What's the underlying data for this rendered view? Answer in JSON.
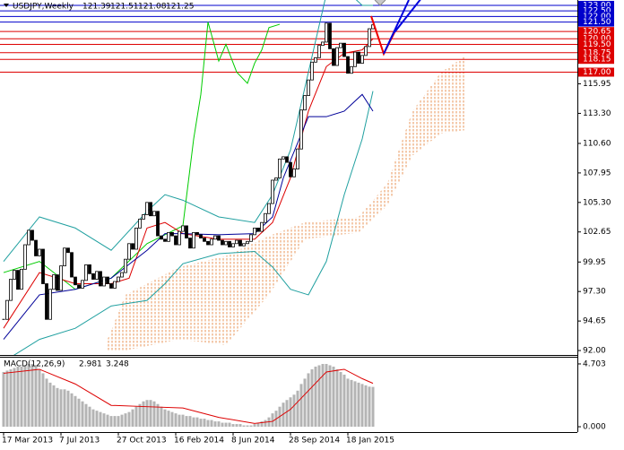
{
  "chart_data": {
    "type": "candlestick",
    "symbol": "USDJPY,Weekly",
    "ohlc_header": [
      121.39,
      121.51,
      121.08,
      121.25
    ],
    "close": [
      94.8,
      96.5,
      98.4,
      99.2,
      97.5,
      99.3,
      101.5,
      102.8,
      101.9,
      100.5,
      101.1,
      98.0,
      94.8,
      97.5,
      98.8,
      97.4,
      99.6,
      101.2,
      100.8,
      98.6,
      97.9,
      97.6,
      98.3,
      99.7,
      98.9,
      98.4,
      99.1,
      97.8,
      98.6,
      98.0,
      97.6,
      98.2,
      98.6,
      99.0,
      100.2,
      101.6,
      101.1,
      103.0,
      103.8,
      104.2,
      105.3,
      104.1,
      104.5,
      102.3,
      102.0,
      101.8,
      102.6,
      102.3,
      101.5,
      102.7,
      103.2,
      102.1,
      101.2,
      102.6,
      102.4,
      102.1,
      101.8,
      101.5,
      102.0,
      102.3,
      101.9,
      101.5,
      101.8,
      101.3,
      101.6,
      101.9,
      101.4,
      101.6,
      101.8,
      102.4,
      103.0,
      102.7,
      103.5,
      104.3,
      105.2,
      107.3,
      107.5,
      109.2,
      109.4,
      108.9,
      107.6,
      108.3,
      110.1,
      113.6,
      114.9,
      116.3,
      117.9,
      118.3,
      119.4,
      119.7,
      121.4,
      119.1,
      117.6,
      119.2,
      119.6,
      118.4,
      116.9,
      117.5,
      118.8,
      117.8,
      118.5,
      119.3,
      120.9,
      121.25
    ],
    "ylim": [
      91.6,
      123.48
    ],
    "yticks": [
      {
        "value": 92,
        "label": "92.00"
      },
      {
        "value": 94.65,
        "label": "94.65"
      },
      {
        "value": 97.3,
        "label": "97.30"
      },
      {
        "value": 99.95,
        "label": "99.95"
      },
      {
        "value": 102.65,
        "label": "102.65"
      },
      {
        "value": 105.3,
        "label": "105.30"
      },
      {
        "value": 107.95,
        "label": "107.95"
      },
      {
        "value": 110.6,
        "label": "110.60"
      },
      {
        "value": 113.3,
        "label": "113.30"
      },
      {
        "value": 115.95,
        "label": "115.95"
      }
    ],
    "xticks": [
      {
        "value": 0,
        "label": "17 Mar 2013"
      },
      {
        "value": 16,
        "label": "7 Jul 2013"
      },
      {
        "value": 32,
        "label": "27 Oct 2013"
      },
      {
        "value": 48,
        "label": "16 Feb 2014"
      },
      {
        "value": 64,
        "label": "8 Jun 2014"
      },
      {
        "value": 80,
        "label": "28 Sep 2014"
      },
      {
        "value": 96,
        "label": "18 Jan 2015"
      }
    ],
    "levels": [
      {
        "value": 123,
        "label": "123.00",
        "color": "#0000cc"
      },
      {
        "value": 122.5,
        "label": "122.50",
        "color": "#0000cc"
      },
      {
        "value": 122,
        "label": "122.00",
        "color": "#0000cc"
      },
      {
        "value": 121.5,
        "label": "121.50",
        "color": "#0000cc"
      },
      {
        "value": 120.65,
        "label": "120.65",
        "color": "#dd0000"
      },
      {
        "value": 120,
        "label": "120.00",
        "color": "#dd0000"
      },
      {
        "value": 119.5,
        "label": "119.50",
        "color": "#dd0000"
      },
      {
        "value": 118.75,
        "label": "118.75",
        "color": "#dd0000"
      },
      {
        "value": 118.15,
        "label": "118.15",
        "color": "#dd0000"
      },
      {
        "value": 117,
        "label": "117.00",
        "color": "#dd0000"
      }
    ],
    "indicators": [
      {
        "color": "#00cc00",
        "x": [
          0,
          10,
          20,
          30,
          40,
          50,
          53,
          55,
          57,
          60,
          62,
          65,
          68,
          70,
          72,
          74,
          77
        ],
        "values": [
          99,
          100,
          97.5,
          98.5,
          101.6,
          103.2,
          111,
          115,
          121.5,
          118,
          119.5,
          117,
          116,
          117.8,
          119,
          121,
          121.3
        ]
      },
      {
        "color": "#20a0a0",
        "x": [
          0,
          10,
          20,
          30,
          40,
          45,
          50,
          60,
          70,
          75,
          80,
          85,
          90,
          95,
          100,
          103
        ],
        "values": [
          100,
          104,
          103,
          101,
          104.5,
          106,
          105.5,
          104,
          103.5,
          106,
          110,
          117,
          124,
          124.5,
          123,
          123
        ]
      },
      {
        "color": "#20a0a0",
        "x": [
          0,
          10,
          20,
          30,
          40,
          45,
          50,
          60,
          70,
          75,
          80,
          85,
          90,
          95,
          100,
          103
        ],
        "values": [
          91,
          93,
          94,
          96,
          96.5,
          98,
          99.8,
          100.7,
          100.9,
          99.5,
          97.5,
          97,
          100,
          106,
          111,
          115.3
        ]
      },
      {
        "color": "#dd0000",
        "x": [
          0,
          10,
          20,
          30,
          35,
          40,
          45,
          50,
          60,
          70,
          75,
          80,
          85,
          90,
          95,
          100,
          103
        ],
        "values": [
          94,
          99,
          98,
          98,
          98.5,
          103,
          103.5,
          102.5,
          102,
          102,
          103.5,
          107.5,
          113.5,
          117.5,
          118.7,
          119,
          120
        ]
      },
      {
        "color": "#000099",
        "x": [
          0,
          10,
          20,
          30,
          40,
          45,
          50,
          60,
          70,
          75,
          78,
          85,
          90,
          95,
          100,
          103
        ],
        "values": [
          93,
          97,
          97.5,
          98.5,
          101,
          102.5,
          102.5,
          102.4,
          102.5,
          104,
          107.5,
          113,
          113,
          113.5,
          115,
          113.5
        ]
      }
    ],
    "cloud": {
      "color": "#e8965a",
      "x": [
        29,
        34,
        49,
        62,
        74,
        84,
        99,
        107,
        114,
        122,
        129
      ],
      "upper": [
        93,
        97,
        99.5,
        100.5,
        102.3,
        103.5,
        104,
        107,
        113.5,
        117,
        118.5
      ],
      "lower": [
        92,
        92,
        93,
        92.5,
        97,
        102,
        102.6,
        105,
        109.5,
        111.5,
        111.8
      ]
    },
    "macd": {
      "label": "MACD(12,26,9)",
      "readings": [
        2.981,
        3.248
      ],
      "histogram": [
        4.1,
        4.2,
        4.3,
        4.4,
        4.5,
        4.5,
        4.6,
        4.7,
        4.7,
        4.6,
        4.3,
        4.0,
        3.6,
        3.3,
        3.1,
        2.9,
        2.8,
        2.8,
        2.7,
        2.5,
        2.3,
        2.1,
        1.9,
        1.7,
        1.5,
        1.3,
        1.2,
        1.1,
        1.0,
        0.9,
        0.8,
        0.8,
        0.8,
        0.9,
        1.0,
        1.1,
        1.3,
        1.5,
        1.7,
        1.9,
        2.0,
        2.0,
        1.9,
        1.7,
        1.5,
        1.3,
        1.2,
        1.1,
        1.0,
        0.9,
        0.9,
        0.8,
        0.8,
        0.7,
        0.7,
        0.6,
        0.6,
        0.5,
        0.5,
        0.4,
        0.4,
        0.3,
        0.3,
        0.3,
        0.2,
        0.2,
        0.2,
        0.1,
        0.1,
        0.1,
        0.2,
        0.3,
        0.4,
        0.5,
        0.7,
        1.0,
        1.2,
        1.5,
        1.8,
        2.0,
        2.2,
        2.4,
        2.7,
        3.2,
        3.6,
        4.0,
        4.3,
        4.5,
        4.6,
        4.7,
        4.7,
        4.6,
        4.5,
        4.3,
        4.1,
        3.9,
        3.6,
        3.5,
        3.4,
        3.3,
        3.2,
        3.1,
        3.0,
        2.981
      ],
      "hist_color": "#b4b4b4",
      "signal": {
        "color": "#dd0000",
        "x": [
          0,
          10,
          20,
          30,
          40,
          50,
          60,
          70,
          75,
          80,
          85,
          90,
          95,
          100,
          103
        ],
        "values": [
          4.0,
          4.3,
          3.2,
          1.6,
          1.5,
          1.4,
          0.7,
          0.25,
          0.4,
          1.3,
          2.7,
          4.1,
          4.3,
          3.6,
          3.248
        ]
      },
      "ylim": [
        -0.4,
        5.17
      ],
      "yticks": [
        4.703,
        {
          "value": 0,
          "label": "0.000"
        }
      ]
    }
  }
}
